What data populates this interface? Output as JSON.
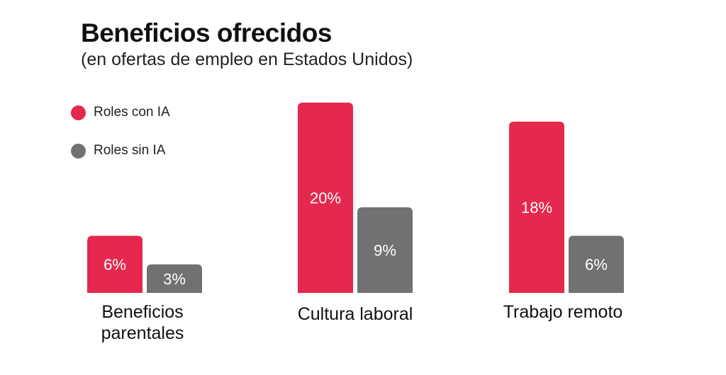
{
  "chart_data": {
    "type": "bar",
    "title": "Beneficios ofrecidos",
    "subtitle": "(en ofertas de empleo en Estados Unidos)",
    "xlabel": "",
    "ylabel": "",
    "ylim": [
      0,
      20
    ],
    "grid": false,
    "legend_position": "top-left",
    "categories": [
      "Beneficios parentales",
      "Cultura laboral",
      "Trabajo remoto"
    ],
    "series": [
      {
        "name": "Roles con IA",
        "color": "#E5284D",
        "values": [
          6,
          20,
          18
        ],
        "labels": [
          "6%",
          "20%",
          "18%"
        ]
      },
      {
        "name": "Roles sin IA",
        "color": "#717171",
        "values": [
          3,
          9,
          6
        ],
        "labels": [
          "3%",
          "9%",
          "6%"
        ]
      }
    ]
  }
}
